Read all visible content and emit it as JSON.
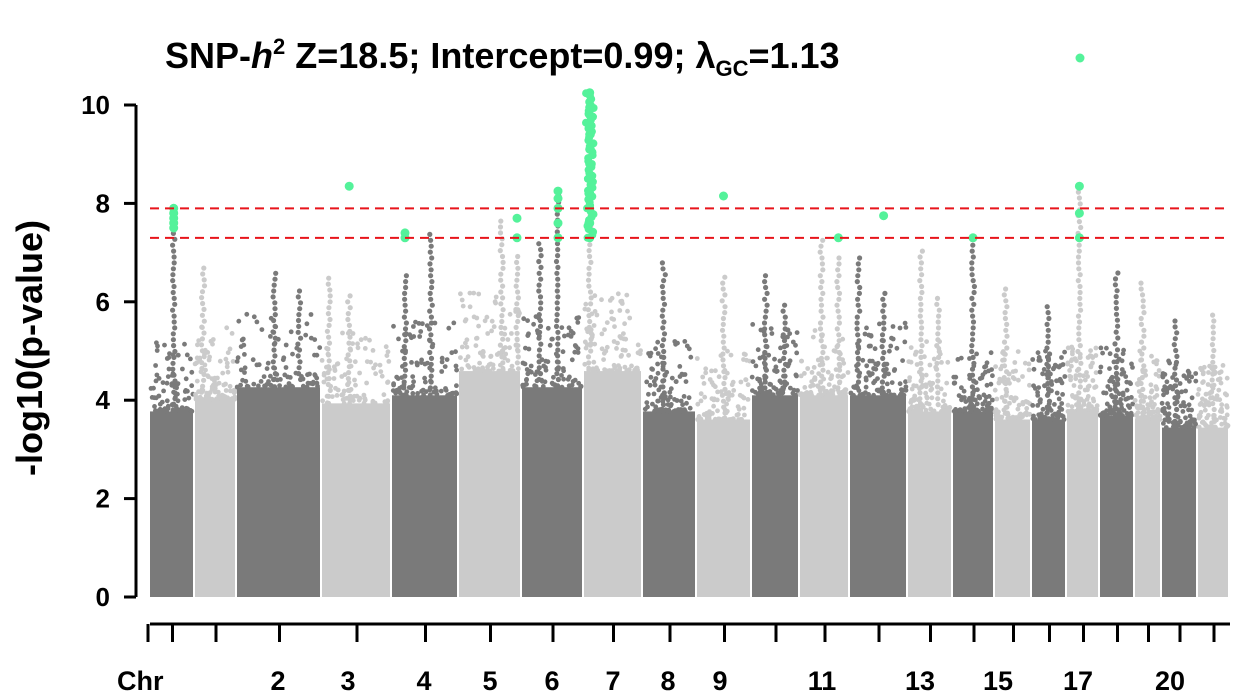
{
  "chart_data": {
    "type": "scatter",
    "subtype": "manhattan",
    "title": {
      "prefix": "SNP-",
      "h": "h",
      "sup": "2",
      "mid": " Z=18.5; Intercept=0.99; λ",
      "sub": "GC",
      "suffix": "=1.13"
    },
    "ylabel": "-log10(p-value)",
    "xlabel": "Chr",
    "ylim": [
      0,
      11
    ],
    "yticks": [
      0,
      2,
      4,
      6,
      8,
      10
    ],
    "threshold_lines": [
      7.3,
      7.9
    ],
    "threshold_color": "#e8141b",
    "colors": {
      "dark": "#7a7a7a",
      "light": "#cbcbcb",
      "highlight": "#54f29a",
      "axis": "#000000"
    },
    "chromosome_labels": [
      "2",
      "3",
      "4",
      "5",
      "6",
      "7",
      "8",
      "9",
      "11",
      "13",
      "15",
      "17",
      "20"
    ],
    "chromosomes": [
      {
        "chr": "1",
        "top": 7.9,
        "bulk": 4.6,
        "hits": [
          7.5,
          7.6,
          7.7,
          7.8,
          7.9
        ],
        "peaks": [
          [
            0.55,
            7.9
          ]
        ]
      },
      {
        "chr": "2",
        "top": 6.8,
        "bulk": 4.9,
        "hits": [],
        "peaks": [
          [
            0.2,
            6.8
          ]
        ]
      },
      {
        "chr": "3",
        "top": 6.7,
        "bulk": 5.2,
        "hits": [],
        "peaks": [
          [
            0.45,
            6.7
          ],
          [
            0.75,
            6.3
          ]
        ]
      },
      {
        "chr": "4",
        "top": 6.6,
        "bulk": 4.8,
        "hits": [
          8.35
        ],
        "peaks": [
          [
            0.1,
            6.6
          ],
          [
            0.4,
            6.2
          ]
        ]
      },
      {
        "chr": "5",
        "top": 7.2,
        "bulk": 5.0,
        "hits": [
          7.3,
          7.4
        ],
        "peaks": [
          [
            0.6,
            7.4
          ],
          [
            0.2,
            6.6
          ]
        ]
      },
      {
        "chr": "6",
        "top": 6.7,
        "bulk": 5.6,
        "hits": [
          7.3,
          7.7
        ],
        "peaks": [
          [
            0.7,
            7.7
          ],
          [
            0.95,
            7.0
          ]
        ]
      },
      {
        "chr": "7",
        "top": 7.0,
        "bulk": 5.2,
        "hits": [
          7.3,
          7.6,
          7.9,
          8.1,
          8.25
        ],
        "peaks": [
          [
            0.3,
            7.3
          ],
          [
            0.6,
            8.25
          ]
        ]
      },
      {
        "chr": "8",
        "top": 10.25,
        "bulk": 5.6,
        "hits": [
          7.3,
          7.6,
          7.9,
          8.2,
          8.5,
          8.8,
          9.1,
          9.4,
          9.6,
          9.8,
          9.95,
          10.25
        ],
        "peaks": [
          [
            0.1,
            10.25
          ]
        ]
      },
      {
        "chr": "9",
        "top": 6.8,
        "bulk": 4.6,
        "hits": [],
        "peaks": [
          [
            0.4,
            6.8
          ]
        ]
      },
      {
        "chr": "10",
        "top": 6.6,
        "bulk": 4.4,
        "hits": [
          8.15
        ],
        "peaks": [
          [
            0.5,
            6.6
          ]
        ]
      },
      {
        "chr": "11",
        "top": 6.6,
        "bulk": 5.0,
        "hits": [],
        "peaks": [
          [
            0.3,
            6.6
          ],
          [
            0.7,
            6.0
          ]
        ]
      },
      {
        "chr": "12",
        "top": 7.3,
        "bulk": 5.0,
        "hits": [
          7.3
        ],
        "peaks": [
          [
            0.45,
            7.3
          ],
          [
            0.8,
            7.0
          ]
        ]
      },
      {
        "chr": "13",
        "top": 7.0,
        "bulk": 5.0,
        "hits": [
          7.75
        ],
        "peaks": [
          [
            0.15,
            7.0
          ],
          [
            0.6,
            6.2
          ]
        ]
      },
      {
        "chr": "14",
        "top": 7.1,
        "bulk": 4.6,
        "hits": [],
        "peaks": [
          [
            0.3,
            7.1
          ],
          [
            0.7,
            6.1
          ]
        ]
      },
      {
        "chr": "15",
        "top": 7.3,
        "bulk": 4.6,
        "hits": [
          7.3
        ],
        "peaks": [
          [
            0.5,
            7.3
          ]
        ]
      },
      {
        "chr": "16",
        "top": 6.3,
        "bulk": 4.4,
        "hits": [],
        "peaks": [
          [
            0.3,
            6.3
          ]
        ]
      },
      {
        "chr": "17",
        "top": 6.0,
        "bulk": 4.4,
        "hits": [],
        "peaks": [
          [
            0.5,
            6.0
          ]
        ]
      },
      {
        "chr": "18",
        "top": 6.8,
        "bulk": 4.6,
        "hits": [
          7.3,
          7.8,
          8.35
        ],
        "peaks": [
          [
            0.4,
            8.35
          ]
        ]
      },
      {
        "chr": "19",
        "top": 6.6,
        "bulk": 4.5,
        "hits": [],
        "peaks": [
          [
            0.5,
            6.6
          ]
        ]
      },
      {
        "chr": "20",
        "top": 6.4,
        "bulk": 4.4,
        "hits": [],
        "peaks": [
          [
            0.3,
            6.4
          ]
        ]
      },
      {
        "chr": "21",
        "top": 5.7,
        "bulk": 4.2,
        "hits": [],
        "peaks": [
          [
            0.4,
            5.7
          ]
        ]
      },
      {
        "chr": "22",
        "top": 5.8,
        "bulk": 4.2,
        "hits": [],
        "peaks": [
          [
            0.5,
            5.8
          ]
        ]
      }
    ]
  }
}
